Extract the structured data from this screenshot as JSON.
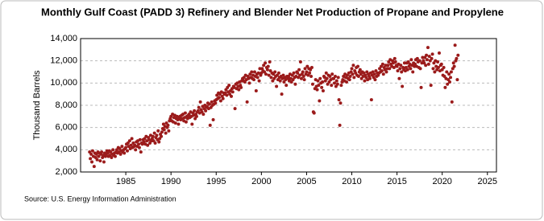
{
  "chart_data": {
    "type": "scatter",
    "title": "Monthly Gulf Coast (PADD 3) Refinery and Blender Net Production of Propane and Propylene",
    "y_label": "Thousand Barrels",
    "source": "Source: U.S. Energy Information Administration",
    "color": "#9b1b1b",
    "xlim": [
      1980,
      2026
    ],
    "xticks": [
      1985,
      1990,
      1995,
      2000,
      2005,
      2010,
      2015,
      2020,
      2025
    ],
    "ylim": [
      2000,
      14000
    ],
    "yticks": [
      {
        "value": 2000,
        "label": "2,000"
      },
      {
        "value": 4000,
        "label": "4,000"
      },
      {
        "value": 6000,
        "label": "6,000"
      },
      {
        "value": 8000,
        "label": "8,000"
      },
      {
        "value": 10000,
        "label": "10,000"
      },
      {
        "value": 12000,
        "label": "12,000"
      },
      {
        "value": 14000,
        "label": "14,000"
      }
    ],
    "grid": true,
    "x": [
      1981,
      1981.08,
      1981.17,
      1981.25,
      1981.33,
      1981.42,
      1981.5,
      1981.58,
      1981.67,
      1981.75,
      1981.83,
      1981.92,
      1982,
      1982.08,
      1982.17,
      1982.25,
      1982.33,
      1982.42,
      1982.5,
      1982.58,
      1982.67,
      1982.75,
      1982.83,
      1982.92,
      1983,
      1983.08,
      1983.17,
      1983.25,
      1983.33,
      1983.42,
      1983.5,
      1983.58,
      1983.67,
      1983.75,
      1983.83,
      1983.92,
      1984,
      1984.08,
      1984.17,
      1984.25,
      1984.33,
      1984.42,
      1984.5,
      1984.58,
      1984.67,
      1984.75,
      1984.83,
      1984.92,
      1985,
      1985.08,
      1985.17,
      1985.25,
      1985.33,
      1985.42,
      1985.5,
      1985.58,
      1985.67,
      1985.75,
      1985.83,
      1985.92,
      1986,
      1986.08,
      1986.17,
      1986.25,
      1986.33,
      1986.42,
      1986.5,
      1986.58,
      1986.67,
      1986.75,
      1986.83,
      1986.92,
      1987,
      1987.08,
      1987.17,
      1987.25,
      1987.33,
      1987.42,
      1987.5,
      1987.58,
      1987.67,
      1987.75,
      1987.83,
      1987.92,
      1988,
      1988.08,
      1988.17,
      1988.25,
      1988.33,
      1988.42,
      1988.5,
      1988.58,
      1988.67,
      1988.75,
      1988.83,
      1988.92,
      1989,
      1989.08,
      1989.17,
      1989.25,
      1989.33,
      1989.42,
      1989.5,
      1989.58,
      1989.67,
      1989.75,
      1989.83,
      1989.92,
      1990,
      1990.08,
      1990.17,
      1990.25,
      1990.33,
      1990.42,
      1990.5,
      1990.58,
      1990.67,
      1990.75,
      1990.83,
      1990.92,
      1991,
      1991.08,
      1991.17,
      1991.25,
      1991.33,
      1991.42,
      1991.5,
      1991.58,
      1991.67,
      1991.75,
      1991.83,
      1991.92,
      1992,
      1992.08,
      1992.17,
      1992.25,
      1992.33,
      1992.42,
      1992.5,
      1992.58,
      1992.67,
      1992.75,
      1992.83,
      1992.92,
      1993,
      1993.08,
      1993.17,
      1993.25,
      1993.33,
      1993.42,
      1993.5,
      1993.58,
      1993.67,
      1993.75,
      1993.83,
      1993.92,
      1994,
      1994.08,
      1994.17,
      1994.25,
      1994.33,
      1994.42,
      1994.5,
      1994.58,
      1994.67,
      1994.75,
      1994.83,
      1994.92,
      1995,
      1995.08,
      1995.17,
      1995.25,
      1995.33,
      1995.42,
      1995.5,
      1995.58,
      1995.67,
      1995.75,
      1995.83,
      1995.92,
      1996,
      1996.08,
      1996.17,
      1996.25,
      1996.33,
      1996.42,
      1996.5,
      1996.58,
      1996.67,
      1996.75,
      1996.83,
      1996.92,
      1997,
      1997.08,
      1997.17,
      1997.25,
      1997.33,
      1997.42,
      1997.5,
      1997.58,
      1997.67,
      1997.75,
      1997.83,
      1997.92,
      1998,
      1998.08,
      1998.17,
      1998.25,
      1998.33,
      1998.42,
      1998.5,
      1998.58,
      1998.67,
      1998.75,
      1998.83,
      1998.92,
      1999,
      1999.08,
      1999.17,
      1999.25,
      1999.33,
      1999.42,
      1999.5,
      1999.58,
      1999.67,
      1999.75,
      1999.83,
      1999.92,
      2000,
      2000.08,
      2000.17,
      2000.25,
      2000.33,
      2000.42,
      2000.5,
      2000.58,
      2000.67,
      2000.75,
      2000.83,
      2000.92,
      2001,
      2001.08,
      2001.17,
      2001.25,
      2001.33,
      2001.42,
      2001.5,
      2001.58,
      2001.67,
      2001.75,
      2001.83,
      2001.92,
      2002,
      2002.08,
      2002.17,
      2002.25,
      2002.33,
      2002.42,
      2002.5,
      2002.58,
      2002.67,
      2002.75,
      2002.83,
      2002.92,
      2003,
      2003.08,
      2003.17,
      2003.25,
      2003.33,
      2003.42,
      2003.5,
      2003.58,
      2003.67,
      2003.75,
      2003.83,
      2003.92,
      2004,
      2004.08,
      2004.17,
      2004.25,
      2004.33,
      2004.42,
      2004.5,
      2004.58,
      2004.67,
      2004.75,
      2004.83,
      2004.92,
      2005,
      2005.08,
      2005.17,
      2005.25,
      2005.33,
      2005.42,
      2005.5,
      2005.58,
      2005.67,
      2005.75,
      2005.83,
      2005.92,
      2006,
      2006.08,
      2006.17,
      2006.25,
      2006.33,
      2006.42,
      2006.5,
      2006.58,
      2006.67,
      2006.75,
      2006.83,
      2006.92,
      2007,
      2007.08,
      2007.17,
      2007.25,
      2007.33,
      2007.42,
      2007.5,
      2007.58,
      2007.67,
      2007.75,
      2007.83,
      2007.92,
      2008,
      2008.08,
      2008.17,
      2008.25,
      2008.33,
      2008.42,
      2008.5,
      2008.58,
      2008.67,
      2008.75,
      2008.83,
      2008.92,
      2009,
      2009.08,
      2009.17,
      2009.25,
      2009.33,
      2009.42,
      2009.5,
      2009.58,
      2009.67,
      2009.75,
      2009.83,
      2009.92,
      2010,
      2010.08,
      2010.17,
      2010.25,
      2010.33,
      2010.42,
      2010.5,
      2010.58,
      2010.67,
      2010.75,
      2010.83,
      2010.92,
      2011,
      2011.08,
      2011.17,
      2011.25,
      2011.33,
      2011.42,
      2011.5,
      2011.58,
      2011.67,
      2011.75,
      2011.83,
      2011.92,
      2012,
      2012.08,
      2012.17,
      2012.25,
      2012.33,
      2012.42,
      2012.5,
      2012.58,
      2012.67,
      2012.75,
      2012.83,
      2012.92,
      2013,
      2013.08,
      2013.17,
      2013.25,
      2013.33,
      2013.42,
      2013.5,
      2013.58,
      2013.67,
      2013.75,
      2013.83,
      2013.92,
      2014,
      2014.08,
      2014.17,
      2014.25,
      2014.33,
      2014.42,
      2014.5,
      2014.58,
      2014.67,
      2014.75,
      2014.83,
      2014.92,
      2015,
      2015.08,
      2015.17,
      2015.25,
      2015.33,
      2015.42,
      2015.5,
      2015.58,
      2015.67,
      2015.75,
      2015.83,
      2015.92,
      2016,
      2016.08,
      2016.17,
      2016.25,
      2016.33,
      2016.42,
      2016.5,
      2016.58,
      2016.67,
      2016.75,
      2016.83,
      2016.92,
      2017,
      2017.08,
      2017.17,
      2017.25,
      2017.33,
      2017.42,
      2017.5,
      2017.58,
      2017.67,
      2017.75,
      2017.83,
      2017.92,
      2018,
      2018.08,
      2018.17,
      2018.25,
      2018.33,
      2018.42,
      2018.5,
      2018.58,
      2018.67,
      2018.75,
      2018.83,
      2018.92,
      2019,
      2019.08,
      2019.17,
      2019.25,
      2019.33,
      2019.42,
      2019.5,
      2019.58,
      2019.67,
      2019.75,
      2019.83,
      2019.92,
      2020,
      2020.08,
      2020.17,
      2020.25,
      2020.33,
      2020.42,
      2020.5,
      2020.58,
      2020.67,
      2020.75,
      2020.83,
      2020.92,
      2021,
      2021.08,
      2021.17,
      2021.25,
      2021.33,
      2021.42,
      2021.5,
      2021.58,
      2021.67,
      2021.75
    ],
    "values": [
      3800,
      3200,
      3600,
      2900,
      3900,
      3400,
      2500,
      3700,
      3300,
      3600,
      3100,
      3800,
      3400,
      3700,
      3000,
      3600,
      3800,
      3300,
      3500,
      2900,
      3700,
      3400,
      3600,
      3900,
      3700,
      3400,
      3900,
      3500,
      3800,
      3300,
      3600,
      4000,
      3500,
      3700,
      3400,
      3800,
      4000,
      3700,
      4200,
      3800,
      4100,
      3600,
      3900,
      4300,
      3800,
      4000,
      3700,
      4100,
      4200,
      4500,
      3900,
      4600,
      4300,
      4800,
      4100,
      4400,
      5000,
      4200,
      4600,
      4300,
      4400,
      4000,
      4700,
      4300,
      4800,
      4500,
      4200,
      4900,
      3800,
      4600,
      4500,
      4900,
      4700,
      5000,
      4500,
      5200,
      4800,
      4400,
      5100,
      4900,
      4600,
      5300,
      4800,
      5000,
      5200,
      4800,
      5500,
      4600,
      5100,
      5300,
      4900,
      5700,
      4700,
      5000,
      5400,
      5200,
      5600,
      5900,
      6300,
      5800,
      6100,
      5500,
      6400,
      6000,
      6200,
      5700,
      6600,
      6800,
      7000,
      6600,
      7200,
      6500,
      6900,
      7100,
      6400,
      6800,
      7000,
      6700,
      6300,
      6900,
      7000,
      6700,
      7100,
      6800,
      7200,
      6600,
      6900,
      7300,
      6500,
      7000,
      6800,
      7100,
      7200,
      6900,
      7400,
      7000,
      6300,
      7300,
      7100,
      7500,
      6800,
      7200,
      7000,
      7400,
      7500,
      7800,
      7300,
      8300,
      7600,
      7400,
      7900,
      7200,
      7700,
      8000,
      7500,
      7800,
      7900,
      8200,
      7700,
      8100,
      6200,
      7800,
      8300,
      8000,
      6700,
      8100,
      8400,
      8200,
      8500,
      8900,
      8600,
      9100,
      8700,
      9000,
      8400,
      9200,
      8800,
      8600,
      9100,
      9000,
      9100,
      9400,
      8900,
      9600,
      9200,
      9800,
      9000,
      9300,
      8800,
      9500,
      9200,
      9700,
      9600,
      7700,
      9900,
      9500,
      10000,
      9700,
      9400,
      10100,
      9800,
      9600,
      10200,
      10400,
      10200,
      10500,
      10100,
      10700,
      10300,
      8300,
      10600,
      10400,
      10000,
      10800,
      10500,
      11000,
      10400,
      10700,
      10300,
      11000,
      10600,
      9300,
      10800,
      10500,
      10900,
      10200,
      11300,
      10700,
      10900,
      11300,
      11100,
      11600,
      11000,
      11800,
      10800,
      11400,
      11200,
      11500,
      10700,
      11900,
      11100,
      10500,
      10900,
      10200,
      10800,
      10400,
      11000,
      10600,
      9700,
      10700,
      10300,
      10900,
      10500,
      10200,
      10600,
      9000,
      10400,
      10700,
      10100,
      10500,
      10300,
      9800,
      10600,
      10400,
      10600,
      10200,
      10800,
      10400,
      10100,
      10700,
      10300,
      10900,
      10500,
      9900,
      10600,
      11000,
      10900,
      10500,
      11200,
      10700,
      11900,
      10400,
      10800,
      11000,
      10600,
      10300,
      11300,
      10800,
      11000,
      11500,
      10700,
      11300,
      10900,
      11200,
      10600,
      11400,
      9900,
      7400,
      7300,
      9500,
      10300,
      9700,
      9400,
      10200,
      9800,
      8400,
      10400,
      10000,
      9600,
      10100,
      9300,
      10600,
      10500,
      10200,
      10900,
      10400,
      9900,
      10700,
      10100,
      10600,
      10300,
      9800,
      10800,
      10400,
      10400,
      10000,
      10600,
      9700,
      10200,
      9900,
      10500,
      8500,
      6200,
      8200,
      9800,
      10100,
      10300,
      10600,
      10200,
      10800,
      10500,
      10100,
      10700,
      10400,
      10900,
      10300,
      10600,
      11000,
      11300,
      10800,
      11600,
      10500,
      11100,
      10900,
      11400,
      10700,
      11500,
      10600,
      11000,
      11200,
      10800,
      10400,
      11000,
      10600,
      10900,
      10200,
      10700,
      10500,
      11000,
      10300,
      10800,
      10600,
      10400,
      10900,
      8500,
      10700,
      11000,
      10500,
      10800,
      10300,
      11100,
      10600,
      10900,
      10700,
      10900,
      11300,
      11000,
      11500,
      11100,
      11700,
      10800,
      11400,
      11200,
      11600,
      11000,
      11300,
      11600,
      11900,
      11300,
      12100,
      11700,
      11500,
      12000,
      11800,
      11400,
      12200,
      11900,
      11600,
      11500,
      11100,
      11700,
      10400,
      11300,
      11600,
      11000,
      9700,
      11400,
      11200,
      11800,
      11100,
      11400,
      11800,
      11200,
      11900,
      11500,
      11700,
      11300,
      12100,
      11600,
      11000,
      11800,
      11500,
      11700,
      12100,
      11500,
      12200,
      11900,
      11400,
      12000,
      11300,
      9600,
      11800,
      12300,
      12000,
      11800,
      12300,
      11600,
      12500,
      12100,
      13200,
      11700,
      12400,
      12000,
      9800,
      12200,
      12600,
      11300,
      11800,
      11000,
      12000,
      11500,
      11200,
      11900,
      11400,
      12700,
      11100,
      11600,
      11700,
      11200,
      10700,
      11400,
      10600,
      9600,
      10400,
      11000,
      9900,
      10300,
      10800,
      10100,
      10500,
      11000,
      8300,
      11300,
      11800,
      11500,
      13400,
      12000,
      12200,
      10300,
      12500
    ]
  }
}
